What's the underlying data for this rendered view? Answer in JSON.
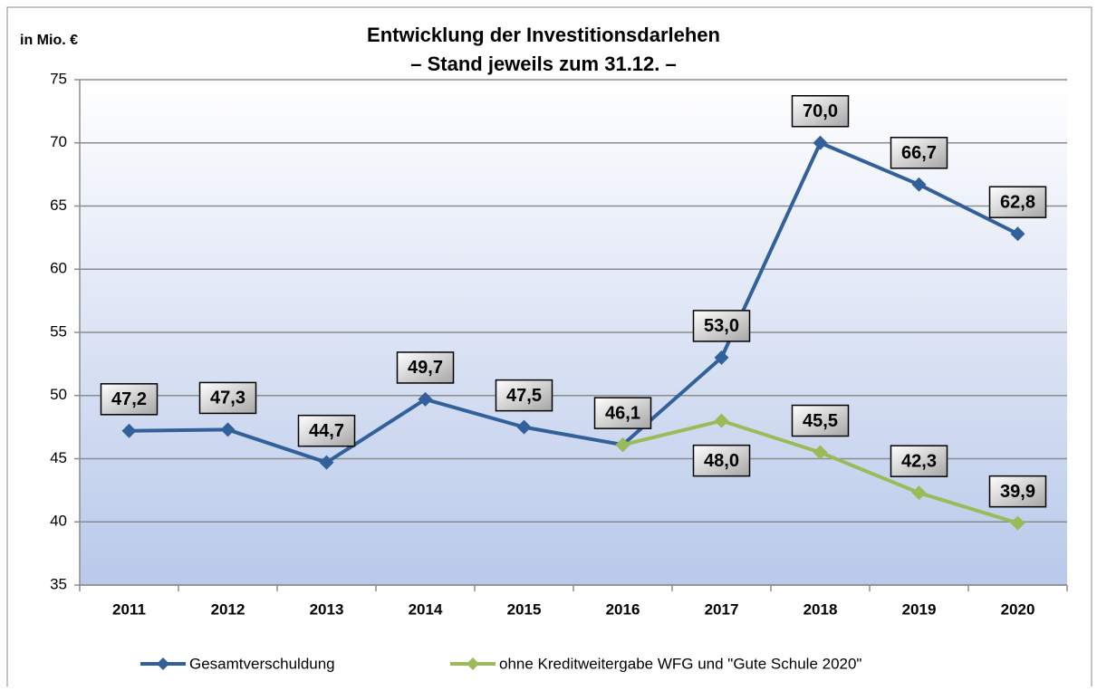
{
  "chart_data": {
    "type": "line",
    "title": "Entwicklung der Investitionsdarlehen",
    "subtitle": "– Stand jeweils zum 31.12. –",
    "y_label": "in Mio. €",
    "categories": [
      "2011",
      "2012",
      "2013",
      "2014",
      "2015",
      "2016",
      "2017",
      "2018",
      "2019",
      "2020"
    ],
    "series": [
      {
        "name": "Gesamtverschuldung",
        "color": "#32609a",
        "values": [
          47.2,
          47.3,
          44.7,
          49.7,
          47.5,
          46.1,
          53.0,
          70.0,
          66.7,
          62.8
        ],
        "value_labels": [
          "47,2",
          "47,3",
          "44,7",
          "49,7",
          "47,5",
          "46,1",
          "53,0",
          "70,0",
          "66,7",
          "62,8"
        ]
      },
      {
        "name": "ohne Kreditweitergabe WFG und \"Gute Schule 2020\"",
        "color": "#9bbb59",
        "values": [
          null,
          null,
          null,
          null,
          null,
          46.1,
          48.0,
          45.5,
          42.3,
          39.9
        ],
        "value_labels": [
          null,
          null,
          null,
          null,
          null,
          null,
          "48,0",
          "45,5",
          "42,3",
          "39,9"
        ]
      }
    ],
    "ylim": [
      35,
      75
    ],
    "yticks": [
      35,
      40,
      45,
      50,
      55,
      60,
      65,
      70,
      75
    ],
    "grid": true,
    "legend": "bottom"
  }
}
